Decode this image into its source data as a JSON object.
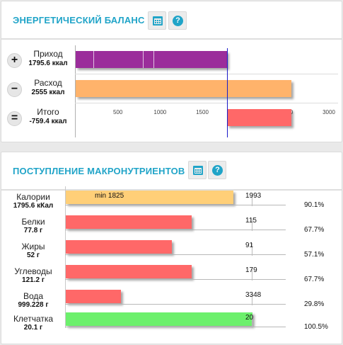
{
  "energy": {
    "title": "ЭНЕРГЕТИЧЕСКИЙ БАЛАНС",
    "calendar_icon": "calendar-icon",
    "help_icon": "question-icon",
    "rows": [
      {
        "symbol": "+",
        "label": "Приход",
        "value": "1795.6 ккал",
        "amount": 1795.6,
        "color": "#9b2d9b"
      },
      {
        "symbol": "−",
        "label": "Расход",
        "value": "2555 ккал",
        "amount": 2555,
        "color": "#ffb36b"
      },
      {
        "symbol": "=",
        "label": "Итого",
        "value": "-759.4 ккал",
        "amount": -759.4,
        "color": "#ff6868"
      }
    ],
    "axis": {
      "min": 0,
      "max": 3000,
      "ticks": [
        "500",
        "1000",
        "1500",
        "2000",
        "2500",
        "3000"
      ]
    },
    "marker_color": "#1a1ac8"
  },
  "macros": {
    "title": "ПОСТУПЛЕНИЕ МАКРОНУТРИЕНТОВ",
    "calendar_icon": "calendar-icon",
    "help_icon": "question-icon",
    "rows": [
      {
        "label": "Калории",
        "value": "1795.6 кКал",
        "target": "1993",
        "min_text": "min 1825",
        "percent": "90.1%",
        "fraction": 0.901,
        "color": "#ffcf78"
      },
      {
        "label": "Белки",
        "value": "77.8 г",
        "target": "115",
        "min_text": "",
        "percent": "67.7%",
        "fraction": 0.677,
        "color": "#ff6868"
      },
      {
        "label": "Жиры",
        "value": "52 г",
        "target": "91",
        "min_text": "",
        "percent": "57.1%",
        "fraction": 0.571,
        "color": "#ff6868"
      },
      {
        "label": "Углеводы",
        "value": "121.2 г",
        "target": "179",
        "min_text": "",
        "percent": "67.7%",
        "fraction": 0.677,
        "color": "#ff6868"
      },
      {
        "label": "Вода",
        "value": "999.228 г",
        "target": "3348",
        "min_text": "",
        "percent": "29.8%",
        "fraction": 0.298,
        "color": "#ff6868"
      },
      {
        "label": "Клетчатка",
        "value": "20.1 г",
        "target": "20",
        "min_text": "",
        "percent": "100.5%",
        "fraction": 1.005,
        "color": "#6cf06c"
      }
    ]
  }
}
